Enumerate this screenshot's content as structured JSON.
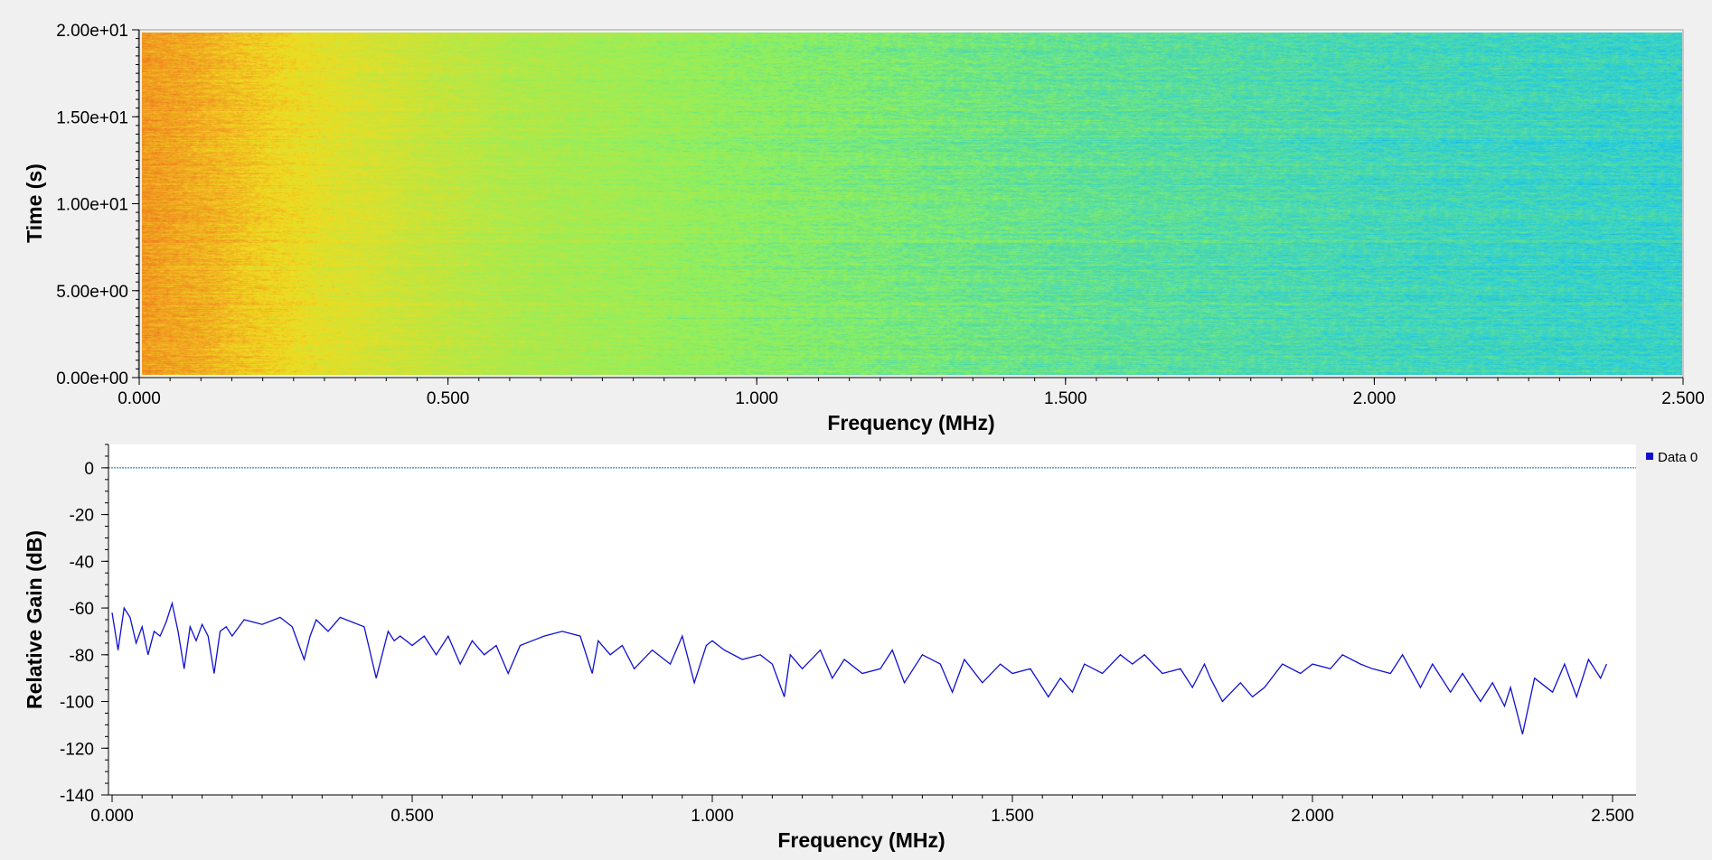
{
  "colors": {
    "background": "#f0f0f0",
    "spectrum_line": "#1010d0",
    "reference_line": "#1060a0",
    "waterfall_low": "#1ec8e6",
    "waterfall_mid": "#8cf060",
    "waterfall_high": "#f0dc20",
    "waterfall_peak": "#f07820"
  },
  "chart_data": [
    {
      "type": "heatmap",
      "title": "",
      "xlabel": "Frequency (MHz)",
      "ylabel": "Time (s)",
      "xlim": [
        0,
        2.5
      ],
      "ylim": [
        0,
        20
      ],
      "x_ticks": [
        0,
        0.5,
        1.0,
        1.5,
        2.0,
        2.5
      ],
      "x_tick_labels": [
        "0.000",
        "0.500",
        "1.000",
        "1.500",
        "2.000",
        "2.500"
      ],
      "y_ticks": [
        0,
        5,
        10,
        15,
        20
      ],
      "y_tick_labels": [
        "0.00e+00",
        "5.00e+00",
        "1.00e+01",
        "1.50e+01",
        "2.00e+01"
      ],
      "colormap": "blue-green-yellow-orange",
      "intensity_profile": {
        "frequency_mhz": [
          0,
          0.1,
          0.3,
          0.6,
          1.0,
          1.5,
          2.0,
          2.5
        ],
        "relative_level": [
          0.93,
          0.88,
          0.74,
          0.6,
          0.5,
          0.42,
          0.36,
          0.33
        ]
      }
    },
    {
      "type": "line",
      "title": "",
      "xlabel": "Frequency (MHz)",
      "ylabel": "Relative Gain (dB)",
      "xlim": [
        0,
        2.5
      ],
      "ylim": [
        -140,
        10
      ],
      "x_ticks": [
        0,
        0.5,
        1.0,
        1.5,
        2.0,
        2.5
      ],
      "x_tick_labels": [
        "0.000",
        "0.500",
        "1.000",
        "1.500",
        "2.000",
        "2.500"
      ],
      "y_ticks": [
        0,
        -20,
        -40,
        -60,
        -80,
        -100,
        -120,
        -140
      ],
      "y_tick_labels": [
        "0",
        "-20",
        "-40",
        "-60",
        "-80",
        "-100",
        "-120",
        "-140"
      ],
      "grid": false,
      "legend_position": "top-right",
      "reference_line": 0,
      "series": [
        {
          "name": "Data 0",
          "x": [
            0,
            0.01,
            0.02,
            0.03,
            0.04,
            0.05,
            0.06,
            0.07,
            0.08,
            0.09,
            0.1,
            0.11,
            0.12,
            0.13,
            0.14,
            0.15,
            0.16,
            0.17,
            0.18,
            0.19,
            0.2,
            0.22,
            0.25,
            0.28,
            0.3,
            0.32,
            0.33,
            0.34,
            0.36,
            0.38,
            0.4,
            0.42,
            0.44,
            0.46,
            0.47,
            0.48,
            0.5,
            0.52,
            0.54,
            0.56,
            0.58,
            0.6,
            0.62,
            0.64,
            0.66,
            0.68,
            0.7,
            0.72,
            0.75,
            0.78,
            0.8,
            0.81,
            0.83,
            0.85,
            0.87,
            0.9,
            0.93,
            0.95,
            0.97,
            0.99,
            1.0,
            1.02,
            1.05,
            1.08,
            1.1,
            1.12,
            1.13,
            1.15,
            1.18,
            1.2,
            1.22,
            1.25,
            1.28,
            1.3,
            1.32,
            1.35,
            1.38,
            1.4,
            1.42,
            1.45,
            1.48,
            1.5,
            1.53,
            1.56,
            1.58,
            1.6,
            1.62,
            1.65,
            1.68,
            1.7,
            1.72,
            1.75,
            1.78,
            1.8,
            1.82,
            1.83,
            1.85,
            1.88,
            1.9,
            1.92,
            1.95,
            1.98,
            2.0,
            2.03,
            2.05,
            2.08,
            2.1,
            2.13,
            2.15,
            2.18,
            2.2,
            2.23,
            2.25,
            2.28,
            2.3,
            2.32,
            2.33,
            2.35,
            2.37,
            2.4,
            2.42,
            2.44,
            2.46,
            2.48,
            2.49
          ],
          "y": [
            -62,
            -78,
            -60,
            -64,
            -75,
            -68,
            -80,
            -70,
            -72,
            -66,
            -58,
            -70,
            -86,
            -68,
            -74,
            -67,
            -72,
            -88,
            -70,
            -68,
            -72,
            -65,
            -67,
            -64,
            -68,
            -82,
            -72,
            -65,
            -70,
            -64,
            -66,
            -68,
            -90,
            -70,
            -74,
            -72,
            -76,
            -72,
            -80,
            -72,
            -84,
            -74,
            -80,
            -76,
            -88,
            -76,
            -74,
            -72,
            -70,
            -72,
            -88,
            -74,
            -80,
            -76,
            -86,
            -78,
            -84,
            -72,
            -92,
            -76,
            -74,
            -78,
            -82,
            -80,
            -84,
            -98,
            -80,
            -86,
            -78,
            -90,
            -82,
            -88,
            -86,
            -78,
            -92,
            -80,
            -84,
            -96,
            -82,
            -92,
            -84,
            -88,
            -86,
            -98,
            -90,
            -96,
            -84,
            -88,
            -80,
            -84,
            -80,
            -88,
            -86,
            -94,
            -84,
            -90,
            -100,
            -92,
            -98,
            -94,
            -84,
            -88,
            -84,
            -86,
            -80,
            -84,
            -86,
            -88,
            -80,
            -94,
            -84,
            -96,
            -88,
            -100,
            -92,
            -102,
            -94,
            -114,
            -90,
            -96,
            -84,
            -98,
            -82,
            -90,
            -84
          ]
        }
      ]
    }
  ]
}
